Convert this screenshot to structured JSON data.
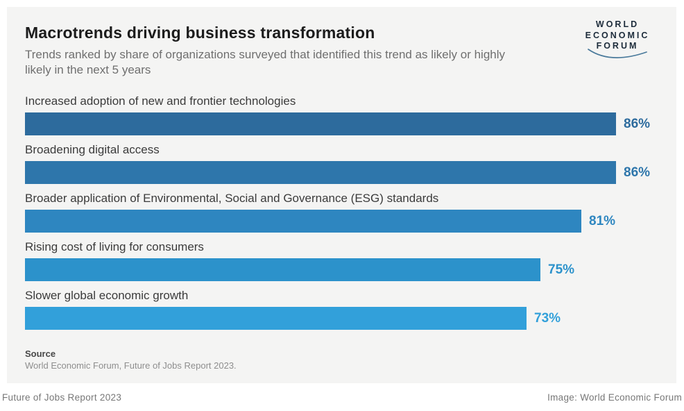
{
  "header": {
    "title": "Macrotrends driving business transformation",
    "subtitle": "Trends ranked by share of organizations surveyed that identified this trend as likely or highly likely in the next 5 years"
  },
  "logo": {
    "line1": "WORLD",
    "line2": "ECONOMIC",
    "line3": "FORUM"
  },
  "chart_data": {
    "type": "bar",
    "orientation": "horizontal",
    "title": "Macrotrends driving business transformation",
    "subtitle": "Trends ranked by share of organizations surveyed that identified this trend as likely or highly likely in the next 5 years",
    "unit": "%",
    "xlim": [
      0,
      100
    ],
    "grid": false,
    "legend": false,
    "categories": [
      "Increased adoption of new and frontier technologies",
      "Broadening digital access",
      "Broader application of Environmental, Social and Governance (ESG) standards",
      "Rising cost of living for consumers",
      "Slower global economic growth"
    ],
    "values": [
      86,
      86,
      81,
      75,
      73
    ],
    "value_labels": [
      "86%",
      "86%",
      "81%",
      "75%",
      "73%"
    ],
    "bar_colors": [
      "#2d6b9d",
      "#2e76ab",
      "#2e86c0",
      "#2c92cb",
      "#32a0da"
    ]
  },
  "source": {
    "label": "Source",
    "text": "World Economic Forum, Future of Jobs Report 2023."
  },
  "footer": {
    "left": "Future of Jobs Report 2023",
    "right": "Image: World Economic Forum"
  }
}
